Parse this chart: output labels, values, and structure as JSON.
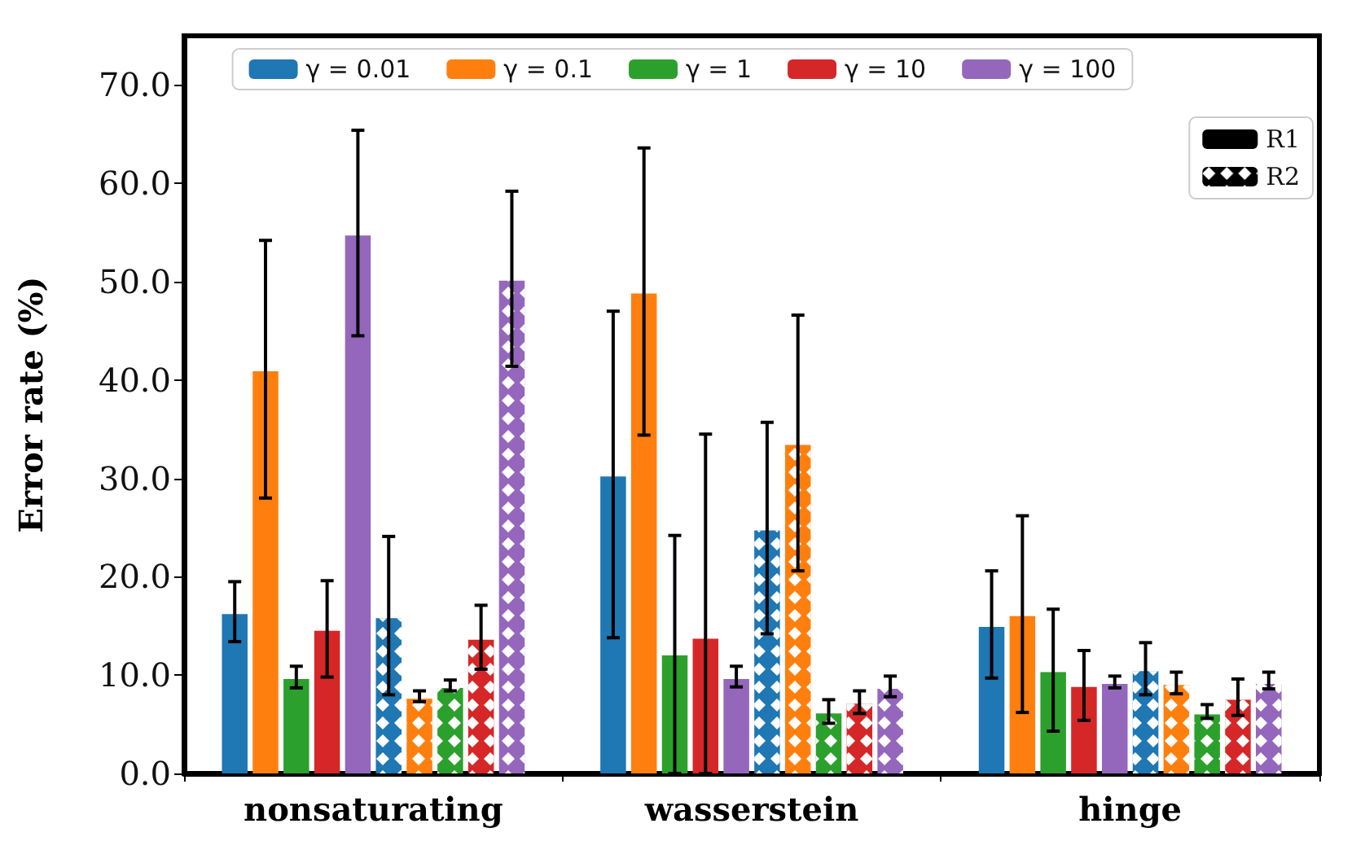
{
  "chart_data": {
    "type": "bar",
    "ylabel": "Error rate (%)",
    "categories": [
      "nonsaturating",
      "wasserstein",
      "hinge"
    ],
    "ylim": [
      0,
      75
    ],
    "yticks": [
      {
        "value": 0,
        "label": "0.0"
      },
      {
        "value": 10,
        "label": "10.0"
      },
      {
        "value": 20,
        "label": "20.0"
      },
      {
        "value": 30,
        "label": "30.0"
      },
      {
        "value": 40,
        "label": "40.0"
      },
      {
        "value": 50,
        "label": "50.0"
      },
      {
        "value": 60,
        "label": "60.0"
      },
      {
        "value": 70,
        "label": "70.0"
      }
    ],
    "grid": false,
    "legend": "top",
    "series": [
      {
        "name": "γ = 0.01",
        "color": "#1f77b4",
        "values": [
          16.2,
          30.2,
          14.9
        ],
        "errors": [
          [
            13.4,
            19.5
          ],
          [
            13.8,
            47.0
          ],
          [
            9.7,
            20.6
          ]
        ]
      },
      {
        "name": "γ = 0.1",
        "color": "#ff7f0e",
        "values": [
          40.9,
          48.8,
          16.0
        ],
        "errors": [
          [
            28.0,
            54.2
          ],
          [
            34.4,
            63.6
          ],
          [
            6.2,
            26.2
          ]
        ]
      },
      {
        "name": "γ = 1",
        "color": "#2ca02c",
        "values": [
          9.6,
          12.0,
          10.3
        ],
        "errors": [
          [
            8.7,
            10.9
          ],
          [
            0,
            24.2
          ],
          [
            4.3,
            16.7
          ]
        ]
      },
      {
        "name": "γ = 10",
        "color": "#d62728",
        "values": [
          14.5,
          13.7,
          8.8
        ],
        "errors": [
          [
            9.8,
            19.6
          ],
          [
            0,
            34.5
          ],
          [
            5.4,
            12.5
          ]
        ]
      },
      {
        "name": "γ = 100",
        "color": "#9467bd",
        "values": [
          54.7,
          9.6,
          9.1
        ],
        "errors": [
          [
            44.5,
            65.4
          ],
          [
            8.8,
            10.9
          ],
          [
            8.7,
            9.9
          ]
        ]
      },
      {
        "color": "#1f77b4",
        "values": [
          15.8,
          24.7,
          10.4
        ],
        "errors": [
          [
            8.0,
            24.1
          ],
          [
            14.2,
            35.7
          ],
          [
            8.0,
            13.3
          ]
        ]
      },
      {
        "color": "#ff7f0e",
        "values": [
          7.6,
          33.4,
          9.0
        ],
        "errors": [
          [
            7.3,
            8.4
          ],
          [
            20.6,
            46.6
          ],
          [
            8.1,
            10.3
          ]
        ]
      },
      {
        "color": "#2ca02c",
        "values": [
          8.7,
          6.1,
          6.0
        ],
        "errors": [
          [
            8.4,
            9.5
          ],
          [
            5.1,
            7.5
          ],
          [
            5.6,
            7.0
          ]
        ]
      },
      {
        "color": "#d62728",
        "values": [
          13.6,
          7.1,
          7.5
        ],
        "errors": [
          [
            10.6,
            17.1
          ],
          [
            6.1,
            8.4
          ],
          [
            5.9,
            9.6
          ]
        ]
      },
      {
        "color": "#9467bd",
        "values": [
          50.1,
          8.6,
          9.1
        ],
        "errors": [
          [
            41.4,
            59.2
          ],
          [
            7.8,
            9.9
          ],
          [
            8.6,
            10.3
          ]
        ]
      },
      {
        "name": "R1",
        "color": "#000000",
        "values": [
          null,
          null,
          null
        ]
      },
      {
        "name": "R2",
        "color": "#000000",
        "values": [
          null,
          null,
          null
        ]
      }
    ]
  }
}
